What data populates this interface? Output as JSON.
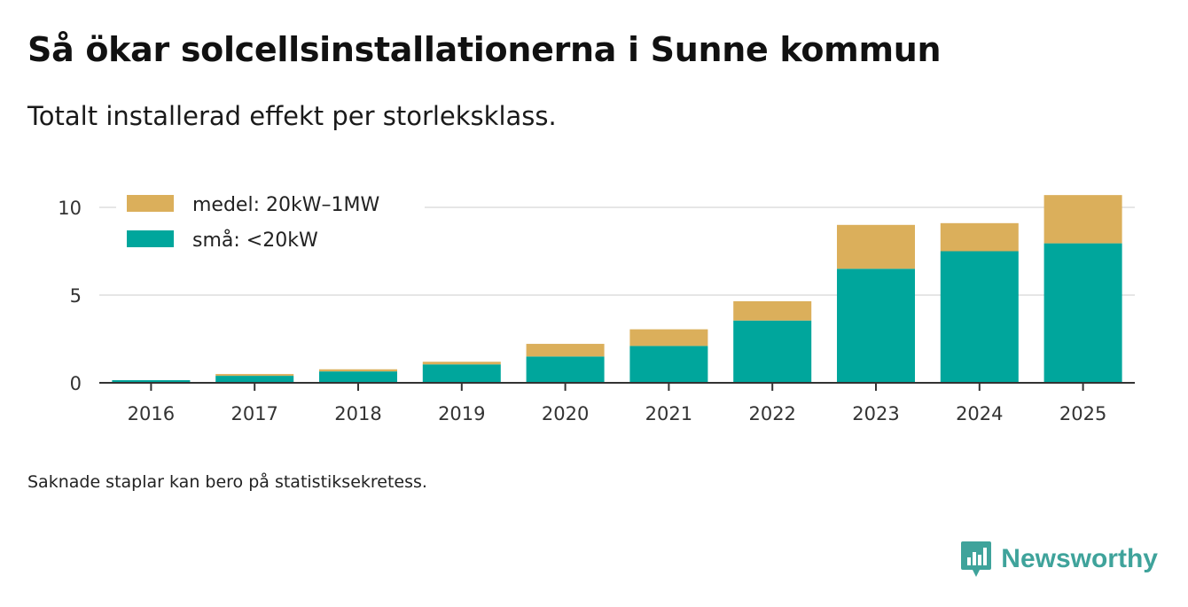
{
  "title": "Så ökar solcellsinstallationerna i Sunne kommun",
  "subtitle": "Totalt installerad effekt per storleksklass.",
  "note": "Saknade staplar kan bero på statistiksekretess.",
  "brand": {
    "name": "Newsworthy"
  },
  "colors": {
    "small": "#00a69c",
    "medium": "#dbaf5b",
    "grid": "#dddddd",
    "axis": "#333333",
    "brand": "#3fa39b"
  },
  "chart_data": {
    "type": "bar",
    "stacked": true,
    "title": "Så ökar solcellsinstallationerna i Sunne kommun",
    "subtitle": "Totalt installerad effekt per storleksklass.",
    "xlabel": "",
    "ylabel": "",
    "ylim": [
      0,
      10.7
    ],
    "yticks": [
      0,
      5,
      10
    ],
    "categories": [
      "2016",
      "2017",
      "2018",
      "2019",
      "2020",
      "2021",
      "2022",
      "2023",
      "2024",
      "2025"
    ],
    "series": [
      {
        "name": "små: <20kW",
        "values": [
          0.15,
          0.4,
          0.65,
          1.05,
          1.5,
          2.1,
          3.55,
          6.5,
          7.5,
          7.95
        ]
      },
      {
        "name": "medel: 20kW–1MW",
        "values": [
          0.0,
          0.1,
          0.12,
          0.15,
          0.72,
          0.95,
          1.1,
          2.5,
          1.6,
          2.75
        ]
      }
    ],
    "legend": "top-left"
  }
}
